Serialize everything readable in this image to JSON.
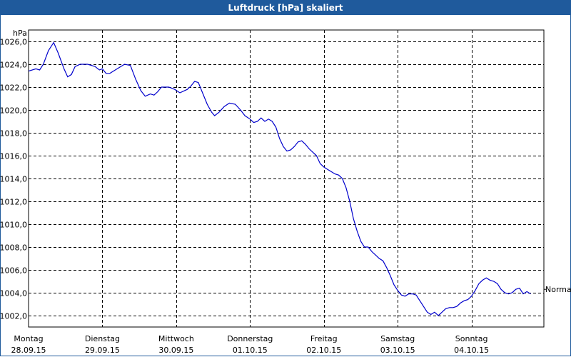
{
  "window": {
    "title": "Luftdruck [hPa] skaliert"
  },
  "chart_data": {
    "type": "line",
    "title": "Luftdruck [hPa] skaliert",
    "ylabel": "hPa",
    "ylim": [
      1001.0,
      1027.0
    ],
    "yticks": [
      1002,
      1004,
      1006,
      1008,
      1010,
      1012,
      1014,
      1016,
      1018,
      1020,
      1022,
      1024,
      1026
    ],
    "ytick_labels": [
      "1002,0",
      "1004,0",
      "1006,0",
      "1008,0",
      "1010,0",
      "1012,0",
      "1014,0",
      "1016,0",
      "1018,0",
      "1020,0",
      "1022,0",
      "1024,0",
      "1026,0"
    ],
    "xlim": [
      0,
      6.98
    ],
    "xticks": [
      {
        "day": "Montag",
        "date": "28.09.15"
      },
      {
        "day": "Dienstag",
        "date": "29.09.15"
      },
      {
        "day": "Mittwoch",
        "date": "30.09.15"
      },
      {
        "day": "Donnerstag",
        "date": "01.10.15"
      },
      {
        "day": "Freitag",
        "date": "02.10.15"
      },
      {
        "day": "Samstag",
        "date": "03.10.15"
      },
      {
        "day": "Sonntag",
        "date": "04.10.15"
      }
    ],
    "grid": true,
    "reference_label": "Normal",
    "reference_value": 1004.3,
    "series_color": "#0000cc",
    "series": [
      {
        "points": [
          [
            0.0,
            1023.4
          ],
          [
            0.1,
            1023.6
          ],
          [
            0.15,
            1023.5
          ],
          [
            0.2,
            1024.0
          ],
          [
            0.27,
            1025.2
          ],
          [
            0.34,
            1025.9
          ],
          [
            0.4,
            1025.0
          ],
          [
            0.48,
            1023.6
          ],
          [
            0.53,
            1022.9
          ],
          [
            0.58,
            1023.1
          ],
          [
            0.63,
            1023.8
          ],
          [
            0.7,
            1024.0
          ],
          [
            0.8,
            1024.0
          ],
          [
            0.9,
            1023.8
          ],
          [
            0.96,
            1023.5
          ],
          [
            1.0,
            1023.6
          ],
          [
            1.05,
            1023.2
          ],
          [
            1.1,
            1023.2
          ],
          [
            1.2,
            1023.6
          ],
          [
            1.3,
            1024.0
          ],
          [
            1.38,
            1023.9
          ],
          [
            1.45,
            1022.7
          ],
          [
            1.52,
            1021.7
          ],
          [
            1.58,
            1021.2
          ],
          [
            1.65,
            1021.4
          ],
          [
            1.7,
            1021.3
          ],
          [
            1.75,
            1021.6
          ],
          [
            1.8,
            1022.0
          ],
          [
            1.9,
            1022.0
          ],
          [
            1.98,
            1021.8
          ],
          [
            2.05,
            1021.5
          ],
          [
            2.15,
            1021.8
          ],
          [
            2.2,
            1022.1
          ],
          [
            2.25,
            1022.5
          ],
          [
            2.3,
            1022.4
          ],
          [
            2.35,
            1021.6
          ],
          [
            2.42,
            1020.5
          ],
          [
            2.48,
            1019.8
          ],
          [
            2.52,
            1019.5
          ],
          [
            2.58,
            1019.8
          ],
          [
            2.65,
            1020.3
          ],
          [
            2.72,
            1020.6
          ],
          [
            2.8,
            1020.5
          ],
          [
            2.87,
            1020.0
          ],
          [
            2.93,
            1019.5
          ],
          [
            3.0,
            1019.2
          ],
          [
            3.05,
            1018.9
          ],
          [
            3.1,
            1019.0
          ],
          [
            3.15,
            1019.3
          ],
          [
            3.2,
            1019.0
          ],
          [
            3.25,
            1019.2
          ],
          [
            3.3,
            1019.0
          ],
          [
            3.35,
            1018.5
          ],
          [
            3.4,
            1017.5
          ],
          [
            3.45,
            1016.8
          ],
          [
            3.5,
            1016.4
          ],
          [
            3.55,
            1016.5
          ],
          [
            3.6,
            1016.8
          ],
          [
            3.65,
            1017.2
          ],
          [
            3.7,
            1017.3
          ],
          [
            3.75,
            1017.0
          ],
          [
            3.8,
            1016.6
          ],
          [
            3.85,
            1016.3
          ],
          [
            3.9,
            1016.0
          ],
          [
            3.95,
            1015.3
          ],
          [
            4.0,
            1015.0
          ],
          [
            4.05,
            1014.8
          ],
          [
            4.1,
            1014.6
          ],
          [
            4.15,
            1014.4
          ],
          [
            4.2,
            1014.3
          ],
          [
            4.25,
            1014.0
          ],
          [
            4.3,
            1013.2
          ],
          [
            4.35,
            1012.0
          ],
          [
            4.4,
            1010.5
          ],
          [
            4.45,
            1009.4
          ],
          [
            4.5,
            1008.5
          ],
          [
            4.55,
            1008.0
          ],
          [
            4.6,
            1008.0
          ],
          [
            4.65,
            1007.6
          ],
          [
            4.7,
            1007.3
          ],
          [
            4.75,
            1007.0
          ],
          [
            4.8,
            1006.8
          ],
          [
            4.85,
            1006.2
          ],
          [
            4.9,
            1005.5
          ],
          [
            4.95,
            1004.7
          ],
          [
            5.0,
            1004.2
          ],
          [
            5.05,
            1003.8
          ],
          [
            5.1,
            1003.7
          ],
          [
            5.15,
            1003.9
          ],
          [
            5.2,
            1003.9
          ],
          [
            5.25,
            1003.8
          ],
          [
            5.3,
            1003.3
          ],
          [
            5.35,
            1002.8
          ],
          [
            5.4,
            1002.3
          ],
          [
            5.45,
            1002.1
          ],
          [
            5.5,
            1002.3
          ],
          [
            5.55,
            1002.0
          ],
          [
            5.6,
            1002.3
          ],
          [
            5.65,
            1002.6
          ],
          [
            5.7,
            1002.7
          ],
          [
            5.75,
            1002.7
          ],
          [
            5.8,
            1002.8
          ],
          [
            5.85,
            1003.1
          ],
          [
            5.9,
            1003.3
          ],
          [
            5.95,
            1003.4
          ],
          [
            6.0,
            1003.7
          ],
          [
            6.05,
            1004.2
          ],
          [
            6.1,
            1004.8
          ],
          [
            6.15,
            1005.1
          ],
          [
            6.2,
            1005.3
          ],
          [
            6.25,
            1005.1
          ],
          [
            6.3,
            1005.0
          ],
          [
            6.35,
            1004.8
          ],
          [
            6.4,
            1004.3
          ],
          [
            6.45,
            1004.0
          ],
          [
            6.5,
            1003.9
          ],
          [
            6.55,
            1004.0
          ],
          [
            6.6,
            1004.3
          ],
          [
            6.65,
            1004.4
          ],
          [
            6.7,
            1003.9
          ],
          [
            6.75,
            1004.1
          ],
          [
            6.8,
            1003.9
          ]
        ]
      }
    ]
  }
}
